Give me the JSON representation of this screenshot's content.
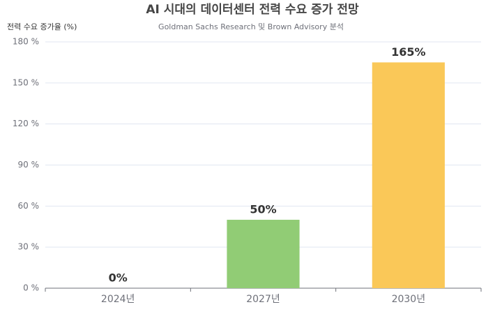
{
  "chart_data": {
    "type": "bar",
    "title": "AI 시대의 데이터센터 전력 수요 증가 전망",
    "subtitle": "Goldman Sachs Research 및 Brown Advisory 분석",
    "y_label": "전력 수요 증가율 (%)",
    "categories": [
      "2024년",
      "2027년",
      "2030년"
    ],
    "values": [
      0,
      50,
      165
    ],
    "value_labels": [
      "0%",
      "50%",
      "165%"
    ],
    "colors": [
      "#5470c6",
      "#91cc75",
      "#fac858"
    ],
    "ylim": [
      0,
      180
    ],
    "yticks": [
      {
        "value": 0,
        "label": "0 %"
      },
      {
        "value": 30,
        "label": "30 %"
      },
      {
        "value": 60,
        "label": "60 %"
      },
      {
        "value": 90,
        "label": "90 %"
      },
      {
        "value": 120,
        "label": "120 %"
      },
      {
        "value": 150,
        "label": "150 %"
      },
      {
        "value": 180,
        "label": "180 %"
      }
    ],
    "grid": true
  }
}
